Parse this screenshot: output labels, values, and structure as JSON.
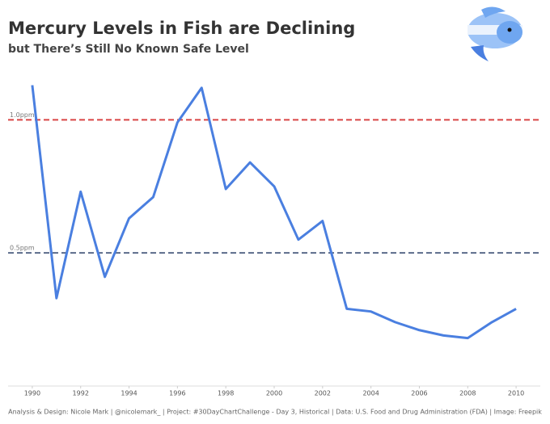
{
  "chart_data": {
    "type": "line",
    "title": "Mercury Levels in Fish are Declining",
    "subtitle": "but There’s Still No Known Safe Level",
    "footer": "Analysis & Design: Nicole Mark | @nicolemark_ | Project: #30DayChartChallenge - Day 3, Historical | Data: U.S. Food and Drug Administration (FDA) | Image: Freepik",
    "x": [
      1990,
      1991,
      1992,
      1993,
      1994,
      1995,
      1996,
      1997,
      1998,
      1999,
      2000,
      2001,
      2002,
      2003,
      2004,
      2005,
      2006,
      2007,
      2008,
      2009,
      2010
    ],
    "series": [
      {
        "color": "#4a7fe0",
        "values": [
          1.13,
          0.33,
          0.73,
          0.41,
          0.63,
          0.71,
          0.99,
          1.12,
          0.74,
          0.84,
          0.75,
          0.55,
          0.62,
          0.29,
          0.28,
          0.24,
          0.21,
          0.19,
          0.18,
          0.24,
          0.29
        ]
      }
    ],
    "xlim": [
      1989,
      2011
    ],
    "ylim": [
      0,
      1.18
    ],
    "xticks": [
      1990,
      1992,
      1994,
      1996,
      1998,
      2000,
      2002,
      2004,
      2006,
      2008,
      2010
    ],
    "reference_lines": [
      {
        "value": 1.0,
        "label": "1.0ppm",
        "color": "#d94545"
      },
      {
        "value": 0.5,
        "label": "0.5ppm",
        "color": "#5b6b8a"
      }
    ]
  }
}
